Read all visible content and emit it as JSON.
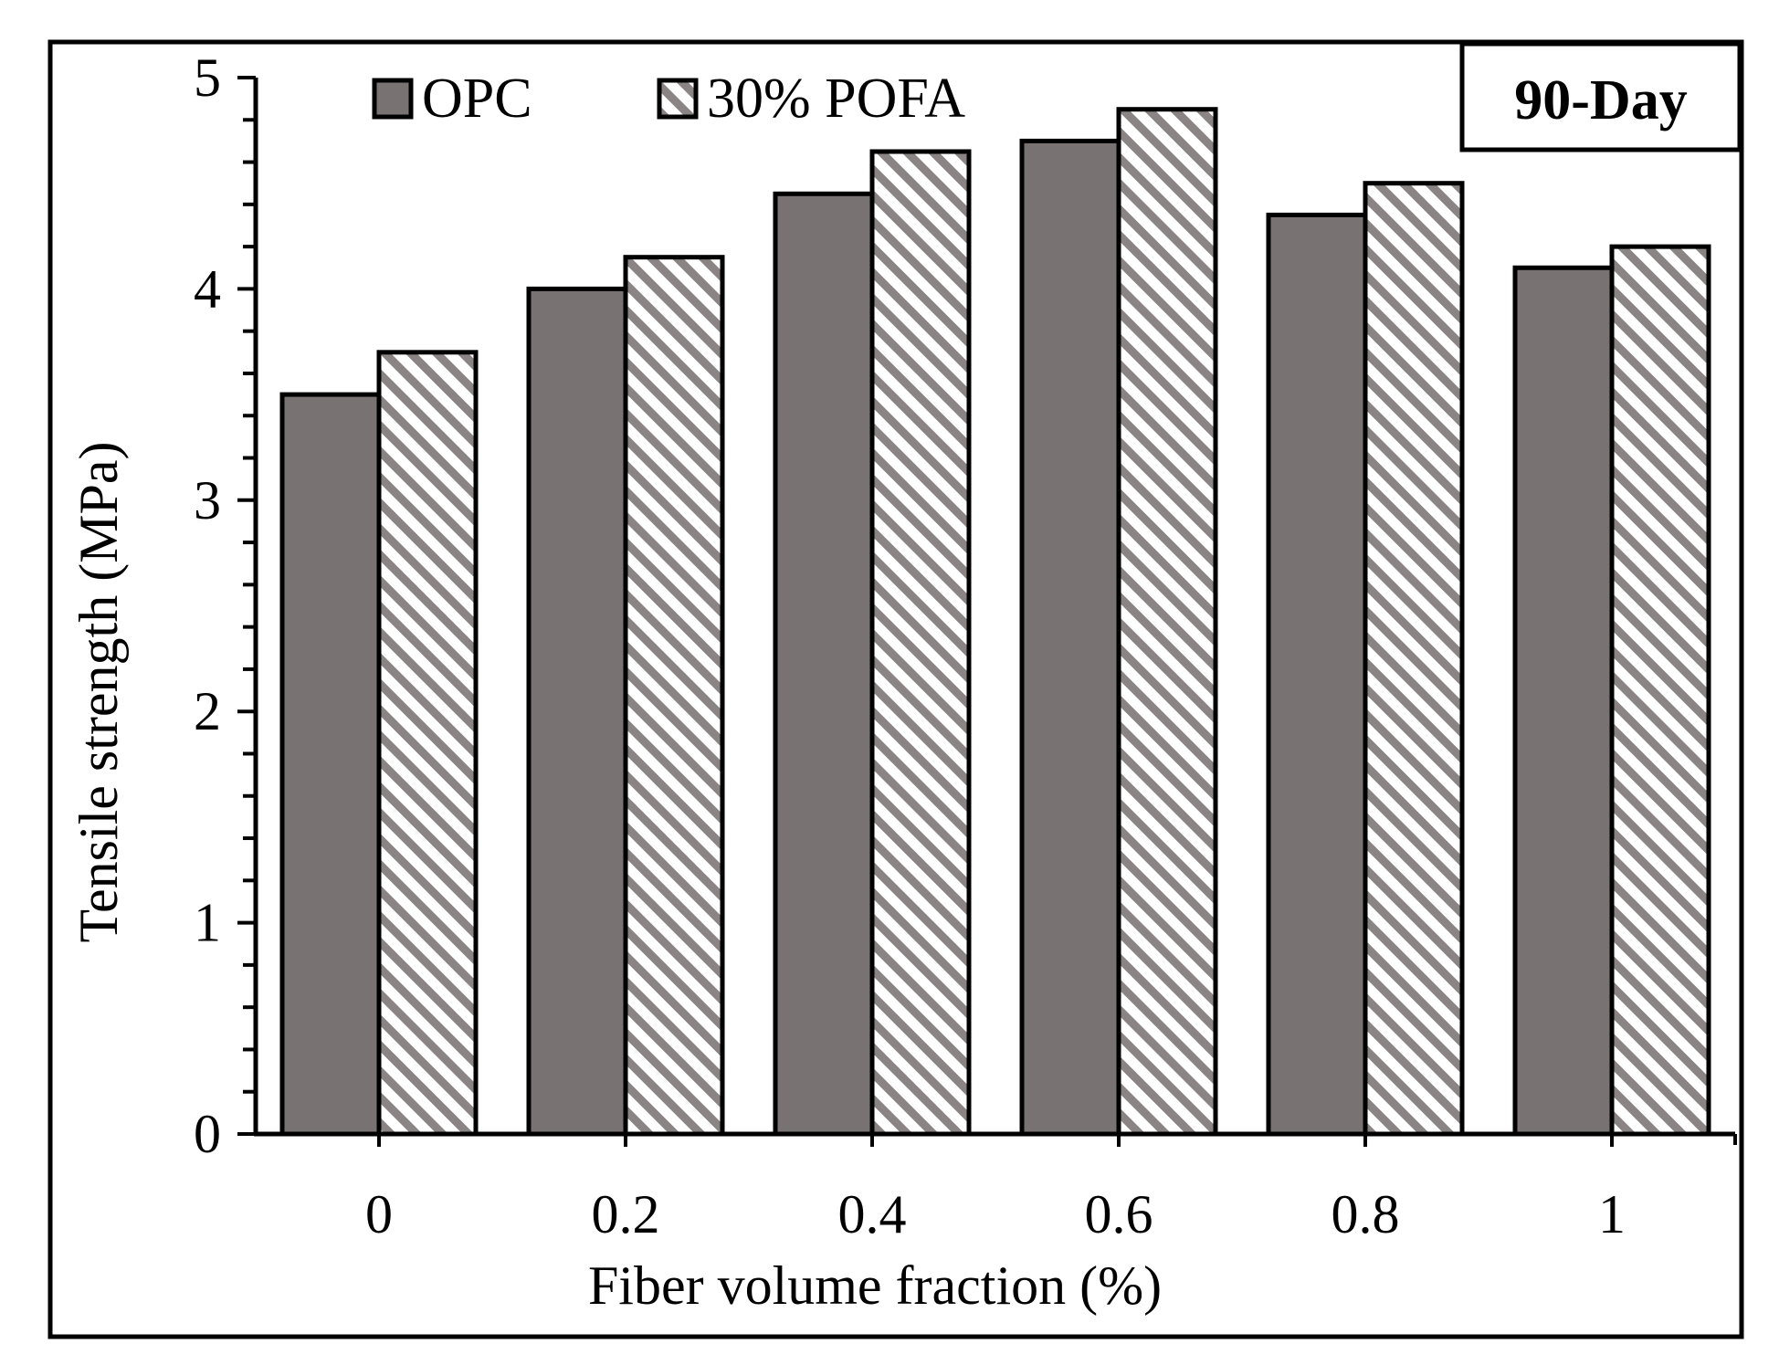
{
  "chart_data": {
    "type": "bar",
    "title": "",
    "badge": "90-Day",
    "xlabel": "Fiber volume fraction (%)",
    "ylabel": "Tensile strength (MPa)",
    "categories": [
      "0",
      "0.2",
      "0.4",
      "0.6",
      "0.8",
      "1"
    ],
    "series": [
      {
        "name": "OPC",
        "values": [
          3.5,
          4.0,
          4.45,
          4.7,
          4.35,
          4.1
        ],
        "color": "#797272",
        "pattern": "solid"
      },
      {
        "name": "30% POFA",
        "values": [
          3.7,
          4.15,
          4.65,
          4.85,
          4.5,
          4.2
        ],
        "color": "#ffffff",
        "pattern": "diagonal-hatch"
      }
    ],
    "ylim": [
      0,
      5
    ],
    "yticks": [
      0,
      1,
      2,
      3,
      4,
      5
    ],
    "yminor_step": 0.2,
    "grid": false,
    "legend_position": "top-left",
    "badge_position": "top-right",
    "hatch_color": "#8a8484"
  }
}
